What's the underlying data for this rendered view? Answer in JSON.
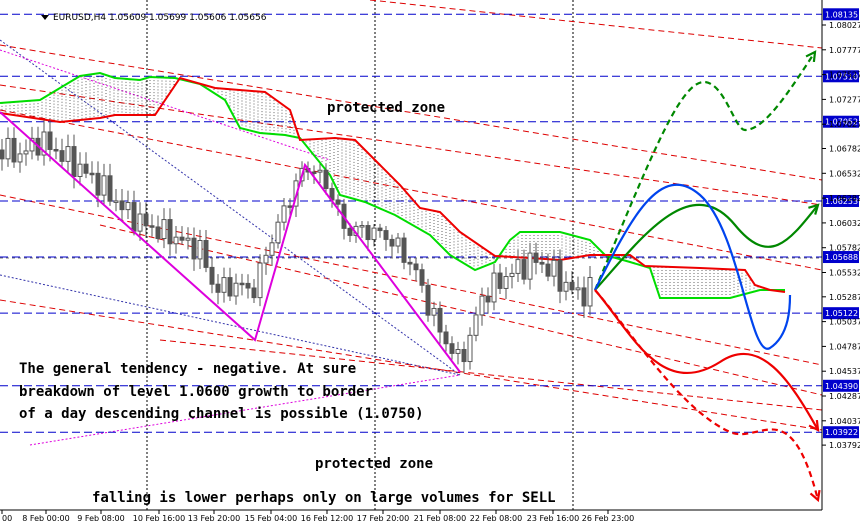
{
  "chart_data": {
    "type": "candlestick",
    "symbol_line": "EURUSD,H4  1.05609 1.05699 1.05606 1.05656",
    "title": "",
    "xlabel": "",
    "ylabel": "",
    "ylim": [
      1.0375,
      1.084
    ],
    "x_tick_labels": [
      "00",
      "8 Feb 00:00",
      "9 Feb 08:00",
      "10 Feb 16:00",
      "13 Feb 20:00",
      "15 Feb 04:00",
      "16 Feb 12:00",
      "17 Feb 20:00",
      "21 Feb 08:00",
      "22 Feb 08:00",
      "23 Feb 16:00",
      "26 Feb 23:00"
    ],
    "y_tick_labels": [
      "1.08027",
      "1.07777",
      "1.07527",
      "1.07277",
      "1.07027",
      "1.06782",
      "1.06532",
      "1.06282",
      "1.06032",
      "1.05782",
      "1.05532",
      "1.05287",
      "1.05037",
      "1.04787",
      "1.04537",
      "1.04287",
      "1.04037",
      "1.03792"
    ],
    "levels": [
      {
        "value": 1.08135,
        "label": "1.08135"
      },
      {
        "value": 1.0751,
        "label": "1.07510"
      },
      {
        "value": 1.07052,
        "label": "1.07052"
      },
      {
        "value": 1.06253,
        "label": "1.06253"
      },
      {
        "value": 1.05688,
        "label": "1.05688"
      },
      {
        "value": 1.05122,
        "label": "1.05122"
      },
      {
        "value": 1.0439,
        "label": "1.04390"
      },
      {
        "value": 1.03922,
        "label": "1.03922"
      }
    ],
    "annotations": {
      "protected_top": "protected zone",
      "protected_bottom": "protected zone",
      "text_line1": "The general tendency - negative. At sure",
      "text_line2": "breakdown of level 1.0600 growth to border",
      "text_line3": "of a day descending channel is possible (1.0750)",
      "text_bottom": "falling is lower perhaps only on large volumes for SELL"
    },
    "colors": {
      "background": "#ffffff",
      "level_line": "#0000cc",
      "level_label_bg": "#0000cc",
      "channel": "#dd0000",
      "kumo_green": "#00dd00",
      "kumo_red": "#ee0000",
      "candles": "#555555",
      "zigzag": "#dd00dd",
      "forecast_green": "#008800",
      "forecast_blue": "#0044ee",
      "forecast_red": "#ee0000"
    }
  }
}
